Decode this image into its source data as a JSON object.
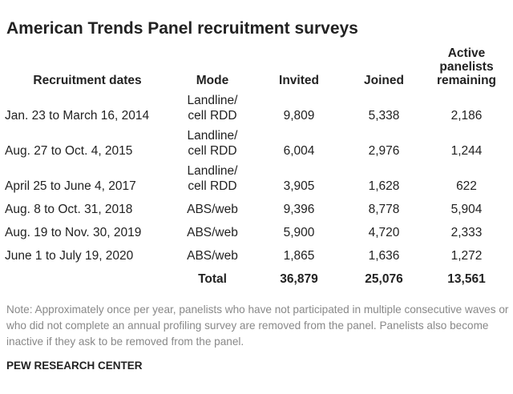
{
  "header": {
    "title": "American Trends Panel recruitment surveys"
  },
  "table": {
    "columns": [
      "Recruitment dates",
      "Mode",
      "Invited",
      "Joined",
      "Active panelists remaining"
    ],
    "rows": [
      [
        "Jan. 23 to March 16, 2014",
        "Landline/ cell RDD",
        "9,809",
        "5,338",
        "2,186"
      ],
      [
        "Aug. 27 to Oct. 4, 2015",
        "Landline/ cell RDD",
        "6,004",
        "2,976",
        "1,244"
      ],
      [
        "April 25 to June 4, 2017",
        "Landline/ cell RDD",
        "3,905",
        "1,628",
        "622"
      ],
      [
        "Aug. 8 to Oct. 31, 2018",
        "ABS/web",
        "9,396",
        "8,778",
        "5,904"
      ],
      [
        "Aug. 19 to Nov. 30, 2019",
        "ABS/web",
        "5,900",
        "4,720",
        "2,333"
      ],
      [
        "June 1 to July 19, 2020",
        "ABS/web",
        "1,865",
        "1,636",
        "1,272"
      ]
    ],
    "total": [
      "Total",
      "36,879",
      "25,076",
      "13,561"
    ]
  },
  "footer": {
    "note": "Note: Approximately once per year, panelists who have not participated in multiple consecutive waves or who did not complete an annual profiling survey are removed from the panel. Panelists also become inactive if they ask to be removed from the panel.",
    "source": "PEW RESEARCH CENTER"
  }
}
